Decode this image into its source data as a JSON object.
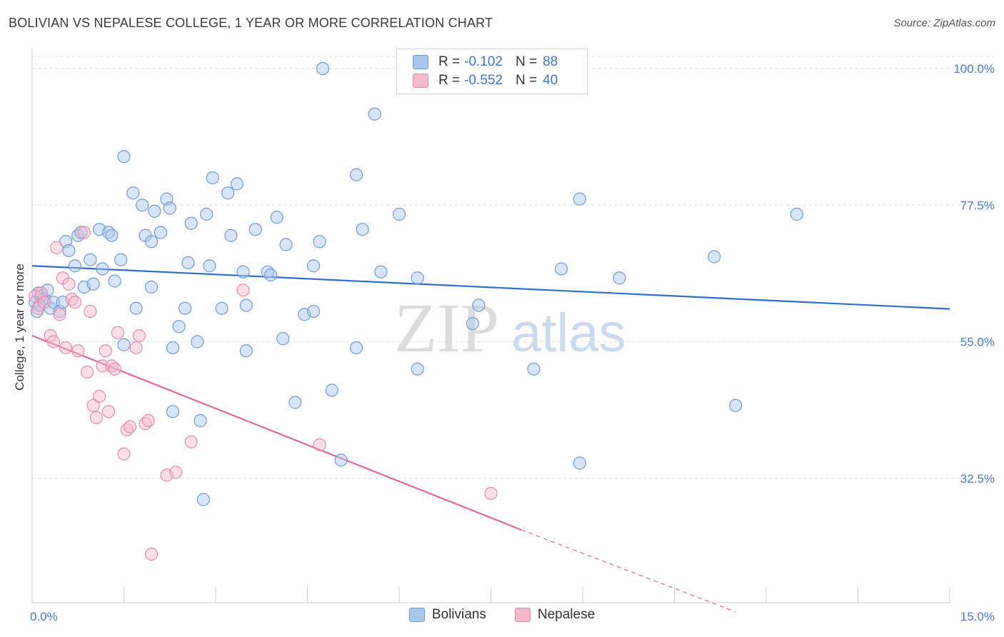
{
  "title": "BOLIVIAN VS NEPALESE COLLEGE, 1 YEAR OR MORE CORRELATION CHART",
  "source": "Source: ZipAtlas.com",
  "watermark": {
    "zip": "ZIP",
    "atlas": "atlas"
  },
  "colors": {
    "blue_fill": "#a9c6ef",
    "blue_stroke": "#6f9bd6",
    "blue_line": "#2f6fc9",
    "pink_fill": "#f6b9cc",
    "pink_stroke": "#e98aa8",
    "pink_line": "#e0679a",
    "tick": "#4a7cc8",
    "grid": "#e1e1e1"
  },
  "legend": {
    "r_label": "R =",
    "n_label": "N =",
    "rows": [
      {
        "r": "-0.102",
        "n": "88",
        "color": "#a9c6ef"
      },
      {
        "r": "-0.552",
        "n": "40",
        "color": "#f6b9cc"
      }
    ]
  },
  "chart_data": {
    "type": "scatter",
    "title": "BOLIVIAN VS NEPALESE COLLEGE, 1 YEAR OR MORE CORRELATION CHART",
    "xlabel": "",
    "ylabel": "College, 1 year or more",
    "xlim": [
      0,
      15
    ],
    "ylim": [
      12,
      102
    ],
    "x_tick_labels": [
      "0.0%",
      "15.0%"
    ],
    "y_tick_labels": [
      "100.0%",
      "77.5%",
      "55.0%",
      "32.5%"
    ],
    "y_ticks": [
      100,
      77.5,
      55,
      32.5
    ],
    "grid": true,
    "legend_position": "top-center",
    "series": [
      {
        "name": "Bolivians",
        "R": -0.102,
        "N": 88,
        "trend": {
          "x0": 0,
          "y0": 67.5,
          "x1": 15,
          "y1": 60.4
        },
        "points": [
          [
            0.05,
            61.5
          ],
          [
            0.1,
            63.0
          ],
          [
            0.15,
            62.5
          ],
          [
            0.2,
            62.0
          ],
          [
            0.25,
            63.5
          ],
          [
            0.3,
            60.5
          ],
          [
            0.35,
            61.5
          ],
          [
            0.45,
            60.0
          ],
          [
            0.5,
            61.5
          ],
          [
            0.55,
            71.5
          ],
          [
            0.6,
            70.0
          ],
          [
            0.7,
            67.5
          ],
          [
            0.75,
            72.5
          ],
          [
            0.8,
            73.0
          ],
          [
            0.85,
            64.0
          ],
          [
            0.95,
            68.5
          ],
          [
            1.0,
            64.5
          ],
          [
            1.1,
            73.5
          ],
          [
            1.15,
            67.0
          ],
          [
            1.25,
            73.0
          ],
          [
            1.3,
            72.5
          ],
          [
            1.35,
            65.0
          ],
          [
            1.45,
            68.5
          ],
          [
            1.5,
            54.5
          ],
          [
            1.5,
            85.5
          ],
          [
            1.65,
            79.5
          ],
          [
            1.7,
            60.5
          ],
          [
            1.8,
            77.5
          ],
          [
            1.85,
            72.5
          ],
          [
            1.95,
            71.5
          ],
          [
            1.95,
            64.0
          ],
          [
            2.0,
            76.5
          ],
          [
            2.1,
            73.0
          ],
          [
            2.2,
            78.5
          ],
          [
            2.25,
            77.0
          ],
          [
            2.3,
            54.0
          ],
          [
            2.3,
            43.5
          ],
          [
            2.4,
            57.5
          ],
          [
            2.5,
            60.5
          ],
          [
            2.55,
            68.0
          ],
          [
            2.6,
            74.5
          ],
          [
            2.7,
            55.0
          ],
          [
            2.75,
            42.0
          ],
          [
            2.8,
            29.0
          ],
          [
            2.85,
            76.0
          ],
          [
            2.9,
            67.5
          ],
          [
            2.95,
            82.0
          ],
          [
            3.1,
            60.5
          ],
          [
            3.2,
            79.5
          ],
          [
            3.25,
            72.5
          ],
          [
            3.35,
            81.0
          ],
          [
            3.45,
            66.5
          ],
          [
            3.5,
            53.5
          ],
          [
            3.5,
            61.0
          ],
          [
            3.65,
            73.5
          ],
          [
            3.85,
            66.5
          ],
          [
            3.9,
            66.0
          ],
          [
            4.0,
            75.5
          ],
          [
            4.1,
            55.5
          ],
          [
            4.15,
            71.0
          ],
          [
            4.3,
            45.0
          ],
          [
            4.45,
            59.5
          ],
          [
            4.6,
            60.0
          ],
          [
            4.6,
            67.5
          ],
          [
            4.7,
            71.5
          ],
          [
            4.75,
            100.0
          ],
          [
            4.9,
            47.0
          ],
          [
            5.05,
            35.5
          ],
          [
            5.3,
            54.0
          ],
          [
            5.3,
            82.5
          ],
          [
            5.4,
            73.5
          ],
          [
            5.6,
            92.5
          ],
          [
            5.7,
            66.5
          ],
          [
            6.0,
            76.0
          ],
          [
            6.3,
            50.5
          ],
          [
            6.3,
            65.5
          ],
          [
            7.2,
            58.0
          ],
          [
            7.3,
            61.0
          ],
          [
            8.2,
            50.5
          ],
          [
            8.65,
            67.0
          ],
          [
            8.95,
            78.5
          ],
          [
            8.95,
            35.0
          ],
          [
            9.6,
            65.5
          ],
          [
            11.15,
            69.0
          ],
          [
            11.5,
            44.5
          ],
          [
            12.5,
            76.0
          ],
          [
            0.08,
            60.0
          ],
          [
            0.12,
            61.0
          ]
        ]
      },
      {
        "name": "Nepalese",
        "R": -0.552,
        "N": 40,
        "trend": {
          "x0": 0,
          "y0": 56.0,
          "x1": 8.0,
          "y1": 24.0,
          "dash_to_x": 11.5,
          "dash_to_y": 10.5
        },
        "points": [
          [
            0.05,
            62.5
          ],
          [
            0.1,
            60.5
          ],
          [
            0.15,
            63.0
          ],
          [
            0.2,
            61.5
          ],
          [
            0.3,
            56.0
          ],
          [
            0.35,
            55.0
          ],
          [
            0.4,
            70.5
          ],
          [
            0.45,
            59.5
          ],
          [
            0.5,
            65.5
          ],
          [
            0.55,
            54.0
          ],
          [
            0.6,
            64.5
          ],
          [
            0.65,
            62.0
          ],
          [
            0.7,
            61.5
          ],
          [
            0.75,
            53.5
          ],
          [
            0.85,
            73.0
          ],
          [
            0.9,
            50.0
          ],
          [
            0.95,
            60.0
          ],
          [
            1.0,
            44.5
          ],
          [
            1.05,
            42.5
          ],
          [
            1.1,
            46.0
          ],
          [
            1.15,
            51.0
          ],
          [
            1.2,
            53.5
          ],
          [
            1.25,
            43.5
          ],
          [
            1.3,
            51.0
          ],
          [
            1.35,
            50.5
          ],
          [
            1.4,
            56.5
          ],
          [
            1.5,
            36.5
          ],
          [
            1.55,
            40.5
          ],
          [
            1.6,
            41.0
          ],
          [
            1.7,
            54.0
          ],
          [
            1.75,
            56.0
          ],
          [
            1.85,
            41.5
          ],
          [
            1.9,
            42.0
          ],
          [
            1.95,
            20.0
          ],
          [
            2.2,
            33.0
          ],
          [
            2.35,
            33.5
          ],
          [
            2.6,
            38.5
          ],
          [
            3.45,
            63.5
          ],
          [
            4.7,
            38.0
          ],
          [
            7.5,
            30.0
          ]
        ]
      }
    ]
  }
}
